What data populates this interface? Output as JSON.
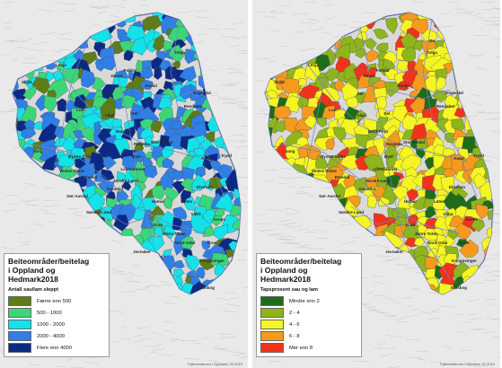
{
  "maps": [
    {
      "legend": {
        "title_line1": "Beiteområder/beitelag",
        "title_line2": "i Oppland og Hedmark2018",
        "subtitle": "Antall sau/lam sleppt",
        "items": [
          {
            "label": "Færre enn 500",
            "color": "#5e7c19"
          },
          {
            "label": "500 - 1000",
            "color": "#3cd67a"
          },
          {
            "label": "1000 - 2000",
            "color": "#13e3e9"
          },
          {
            "label": "2000 - 4000",
            "color": "#2f7fe6"
          },
          {
            "label": "Flere enn 4000",
            "color": "#0b2a86"
          }
        ]
      },
      "credit": "Fylkesmannen i Oppland, 02.2019"
    },
    {
      "legend": {
        "title_line1": "Beiteområder/beitelag",
        "title_line2": "i Oppland og Hedmark2018",
        "subtitle": "Tapsprosent sau og lam",
        "items": [
          {
            "label": "Mindre enn 2",
            "color": "#1d6d1a"
          },
          {
            "label": "2 - 4",
            "color": "#8fb51c"
          },
          {
            "label": "4 - 6",
            "color": "#f5f524"
          },
          {
            "label": "6 - 8",
            "color": "#f59a1d"
          },
          {
            "label": "Mer enn 8",
            "color": "#f2331c"
          }
        ]
      },
      "credit": "Fylkesmannen i Oppland, 02.2019"
    }
  ],
  "place_names": [
    "Os",
    "Tolga",
    "Lesja",
    "Folldal",
    "Alvdal",
    "Dovre",
    "Skjåk",
    "Sel",
    "Engerdal",
    "Rendalen",
    "Lom",
    "Stor-Elvdal",
    "Vågå",
    "Sel",
    "Nord-Fron",
    "Ringebu",
    "Vang",
    "Øystre Slidre",
    "Øyer",
    "Amot",
    "Trysil",
    "Vestre Slidre",
    "Lillehammer",
    "Etnedal",
    "Nordre Land",
    "Elverum",
    "Sør-Aurdal",
    "Gausdal",
    "Søndre Land",
    "Hamar",
    "Løten",
    "Våler",
    "Åsnes",
    "Gran",
    "Østre Toten",
    "Grue",
    "Jevnaker",
    "Nord-Odal",
    "Kongsvinger",
    "Eidskog"
  ]
}
